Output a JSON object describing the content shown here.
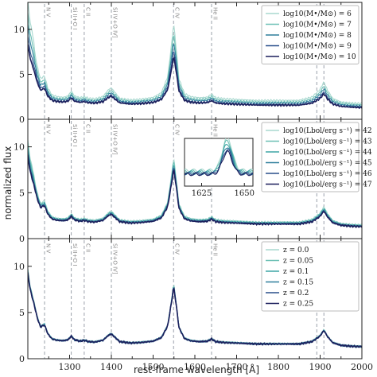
{
  "chart_data": {
    "type": "line",
    "xlabel": "rest-frame wavelength [Å]",
    "ylabel": "normalized flux",
    "xlim": [
      1200,
      2000
    ],
    "ylim": [
      0,
      13
    ],
    "x_ticks": [
      "1300",
      "1400",
      "1500",
      "1600",
      "1700",
      "1800",
      "1900",
      "2000"
    ],
    "x_tick_values": [
      1300,
      1400,
      1500,
      1600,
      1700,
      1800,
      1900,
      2000
    ],
    "y_ticks": [
      "0",
      "5",
      "10"
    ],
    "y_tick_values": [
      0,
      5,
      10
    ],
    "grid": false,
    "emission_lines": [
      {
        "label": "N V",
        "wavelength": 1240
      },
      {
        "label": "Si II+O I",
        "wavelength": 1304
      },
      {
        "label": "C II",
        "wavelength": 1335
      },
      {
        "label": "Si IV+O IV]",
        "wavelength": 1400
      },
      {
        "label": "C IV",
        "wavelength": 1549
      },
      {
        "label": "He II",
        "wavelength": 1640
      },
      {
        "label": "Si III]",
        "wavelength": 1892
      },
      {
        "label": "C III]",
        "wavelength": 1909
      }
    ],
    "colors": [
      "#a8d8cf",
      "#6cc0b5",
      "#3ea5a5",
      "#2e7f9c",
      "#284e8a",
      "#1c1f5c"
    ],
    "base_spectrum": [
      [
        1200,
        9.5
      ],
      [
        1205,
        7.8
      ],
      [
        1212,
        6.5
      ],
      [
        1216,
        5.8
      ],
      [
        1222,
        4.6
      ],
      [
        1230,
        3.5
      ],
      [
        1240,
        3.7
      ],
      [
        1248,
        2.7
      ],
      [
        1258,
        2.15
      ],
      [
        1270,
        2.0
      ],
      [
        1285,
        1.95
      ],
      [
        1296,
        2.05
      ],
      [
        1304,
        2.45
      ],
      [
        1312,
        2.05
      ],
      [
        1325,
        1.9
      ],
      [
        1335,
        2.0
      ],
      [
        1345,
        1.85
      ],
      [
        1360,
        1.8
      ],
      [
        1380,
        2.0
      ],
      [
        1393,
        2.55
      ],
      [
        1400,
        2.7
      ],
      [
        1408,
        2.35
      ],
      [
        1420,
        1.85
      ],
      [
        1445,
        1.7
      ],
      [
        1470,
        1.75
      ],
      [
        1500,
        1.9
      ],
      [
        1520,
        2.3
      ],
      [
        1535,
        3.6
      ],
      [
        1545,
        6.5
      ],
      [
        1549,
        8.0
      ],
      [
        1553,
        6.8
      ],
      [
        1562,
        3.4
      ],
      [
        1575,
        2.2
      ],
      [
        1590,
        1.95
      ],
      [
        1610,
        1.85
      ],
      [
        1630,
        1.9
      ],
      [
        1640,
        2.15
      ],
      [
        1650,
        1.85
      ],
      [
        1670,
        1.75
      ],
      [
        1700,
        1.7
      ],
      [
        1750,
        1.6
      ],
      [
        1800,
        1.6
      ],
      [
        1850,
        1.6
      ],
      [
        1880,
        1.85
      ],
      [
        1893,
        2.25
      ],
      [
        1900,
        2.5
      ],
      [
        1909,
        3.1
      ],
      [
        1918,
        2.4
      ],
      [
        1930,
        1.75
      ],
      [
        1950,
        1.45
      ],
      [
        1975,
        1.35
      ],
      [
        2000,
        1.3
      ]
    ],
    "panels": [
      {
        "legend_title_prefix": "",
        "legend": [
          "log10(M•/M⊙) = 6",
          "log10(M•/M⊙) = 7",
          "log10(M•/M⊙) = 8",
          "log10(M•/M⊙) = 9",
          "log10(M•/M⊙) = 10"
        ],
        "series": [
          {
            "name": "log10(M•/M⊙) = 6",
            "line_scale": 1.35,
            "continuum_shift": 0.45
          },
          {
            "name": "log10(M•/M⊙) = 7",
            "line_scale": 1.2,
            "continuum_shift": 0.3
          },
          {
            "name": "log10(M•/M⊙) = 8",
            "line_scale": 1.08,
            "continuum_shift": 0.18
          },
          {
            "name": "log10(M•/M⊙) = 9",
            "line_scale": 0.96,
            "continuum_shift": 0.05
          },
          {
            "name": "log10(M•/M⊙) = 10",
            "line_scale": 0.85,
            "continuum_shift": 0.0
          }
        ]
      },
      {
        "legend": [
          "log10(Lbol/erg s⁻¹) = 42",
          "log10(Lbol/erg s⁻¹) = 43",
          "log10(Lbol/erg s⁻¹) = 44",
          "log10(Lbol/erg s⁻¹) = 45",
          "log10(Lbol/erg s⁻¹) = 46",
          "log10(Lbol/erg s⁻¹) = 47"
        ],
        "series": [
          {
            "name": "log10(Lbol/erg s⁻¹) = 42",
            "line_scale": 1.1,
            "continuum_shift": 0.2
          },
          {
            "name": "log10(Lbol/erg s⁻¹) = 43",
            "line_scale": 1.06,
            "continuum_shift": 0.15
          },
          {
            "name": "log10(Lbol/erg s⁻¹) = 44",
            "line_scale": 1.03,
            "continuum_shift": 0.1
          },
          {
            "name": "log10(Lbol/erg s⁻¹) = 45",
            "line_scale": 1.0,
            "continuum_shift": 0.05
          },
          {
            "name": "log10(Lbol/erg s⁻¹) = 46",
            "line_scale": 0.97,
            "continuum_shift": 0.02
          },
          {
            "name": "log10(Lbol/erg s⁻¹) = 47",
            "line_scale": 0.94,
            "continuum_shift": 0.0
          }
        ],
        "inset": {
          "xlim": [
            1615,
            1655
          ],
          "x_ticks": [
            "1625",
            "1650"
          ],
          "x_tick_values": [
            1625,
            1650
          ]
        }
      },
      {
        "legend": [
          "z = 0.0",
          "z = 0.05",
          "z = 0.1",
          "z = 0.15",
          "z = 0.2",
          "z = 0.25"
        ],
        "series": [
          {
            "name": "z = 0.0",
            "line_scale": 1.02,
            "continuum_shift": 0.03
          },
          {
            "name": "z = 0.05",
            "line_scale": 1.01,
            "continuum_shift": 0.02
          },
          {
            "name": "z = 0.1",
            "line_scale": 1.0,
            "continuum_shift": 0.01
          },
          {
            "name": "z = 0.15",
            "line_scale": 0.99,
            "continuum_shift": 0.0
          },
          {
            "name": "z = 0.2",
            "line_scale": 0.98,
            "continuum_shift": 0.0
          },
          {
            "name": "z = 0.25",
            "line_scale": 0.97,
            "continuum_shift": 0.0
          }
        ]
      }
    ]
  }
}
